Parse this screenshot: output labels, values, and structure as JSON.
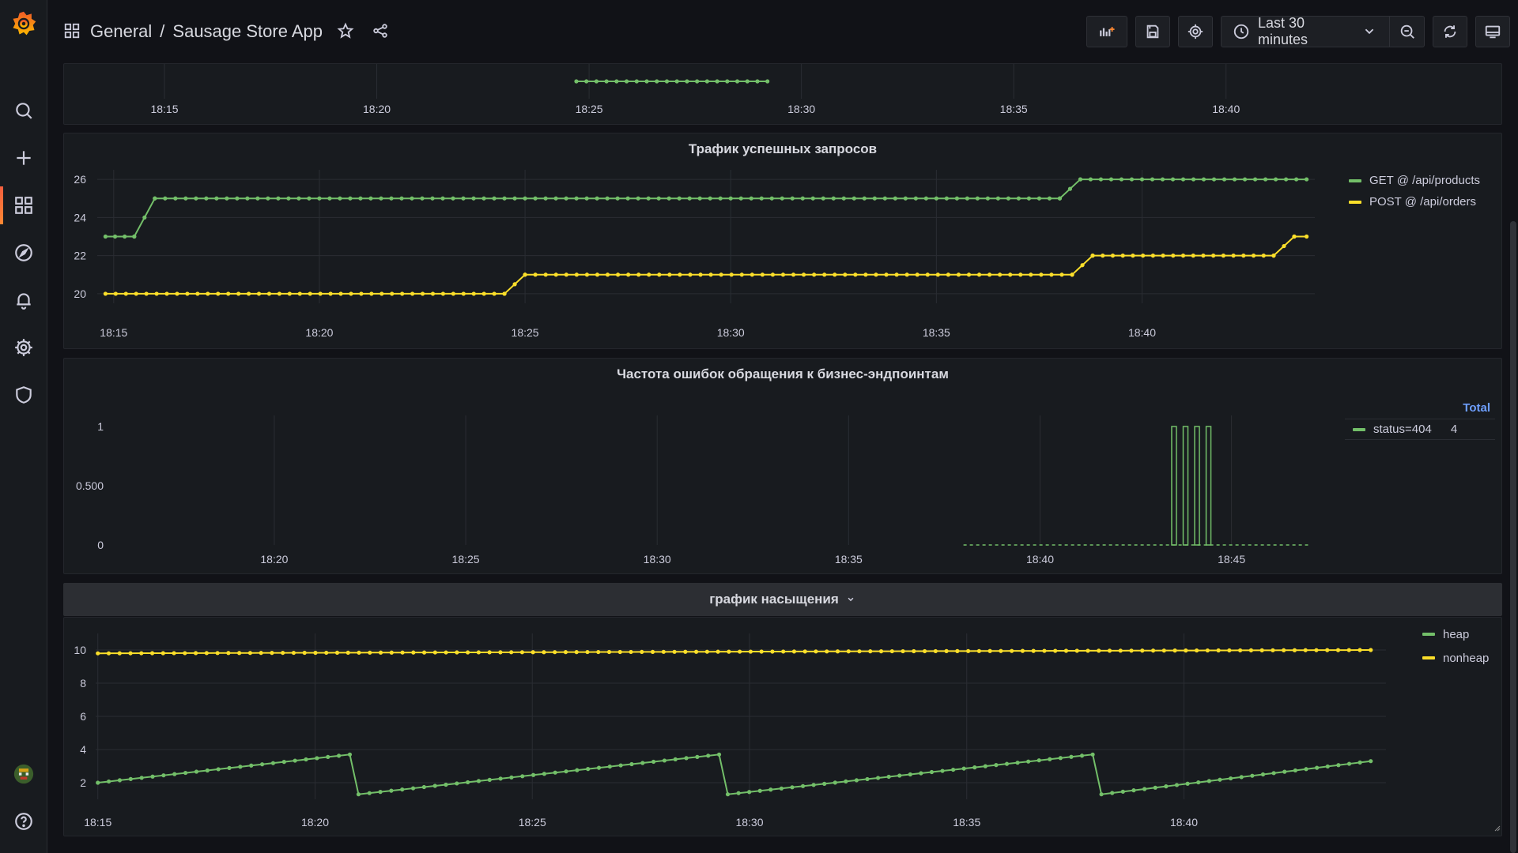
{
  "header": {
    "folder": "General",
    "separator": "/",
    "dashboard_title": "Sausage Store App",
    "time_range": "Last 30 minutes"
  },
  "icons": {
    "logo": "grafana-logo-icon",
    "search": "search-icon",
    "create": "plus-icon",
    "dashboards": "dashboards-grid-icon",
    "explore": "compass-icon",
    "alerting": "bell-icon",
    "configuration": "gear-icon",
    "server_admin": "shield-icon",
    "help": "help-icon"
  },
  "colors": {
    "green": "#73bf69",
    "yellow": "#fade2a",
    "accent": "#f55f3e",
    "link_blue": "#6e9fff"
  },
  "chart_data": [
    {
      "type": "line",
      "title": "",
      "note": "partially visible panel (scrolled), x axis only",
      "xticks": [
        "18:15",
        "18:20",
        "18:25",
        "18:30",
        "18:35",
        "18:40"
      ],
      "series": [
        {
          "name": "",
          "color": "#73bf69",
          "x_range": [
            "18:24.7",
            "18:29.2"
          ],
          "values": [
            1
          ]
        }
      ]
    },
    {
      "type": "line",
      "title": "Трафик успешных запросов",
      "xticks": [
        "18:15",
        "18:20",
        "18:25",
        "18:30",
        "18:35",
        "18:40"
      ],
      "yticks": [
        "20",
        "22",
        "24",
        "26"
      ],
      "ylim": [
        19.5,
        26.5
      ],
      "legend": [
        {
          "label": "GET @ /api/products",
          "color": "#73bf69"
        },
        {
          "label": "POST @ /api/orders",
          "color": "#fade2a"
        }
      ],
      "series": [
        {
          "name": "GET @ /api/products",
          "color": "#73bf69",
          "steps": [
            {
              "from": 18.217,
              "to": 18.25,
              "value": 23
            },
            {
              "from": 18.267,
              "to": 18.383,
              "value": 25
            },
            {
              "from": 18.383,
              "to": 18.742,
              "value": 25
            },
            {
              "from": 18.642,
              "to": 18.742,
              "value": 25
            }
          ]
        },
        {
          "name": "POST @ /api/orders",
          "color": "#fade2a",
          "steps": [
            {
              "from": 18.25,
              "to": 18.4,
              "value": 20
            },
            {
              "from": 18.41,
              "to": 18.625,
              "value": 21
            },
            {
              "from": 18.636,
              "to": 18.7,
              "value": 22
            },
            {
              "from": 18.71,
              "to": 18.742,
              "value": 23
            }
          ]
        }
      ]
    },
    {
      "type": "line",
      "title": "Частота ошибок обращения к бизнес-эндпоинтам",
      "xticks": [
        "18:20",
        "18:25",
        "18:30",
        "18:35",
        "18:40",
        "18:45"
      ],
      "yticks": [
        "0",
        "0.500",
        "1"
      ],
      "ylim": [
        0,
        1
      ],
      "legend_header": "Total",
      "legend": [
        {
          "label": "status=404",
          "total": "4",
          "color": "#73bf69"
        }
      ],
      "series": [
        {
          "name": "status=404",
          "color": "#73bf69",
          "pulses_at": [
            "18:43.5",
            "18:43.8",
            "18:44.1",
            "18:44.4"
          ],
          "pulse_value": 1
        }
      ]
    },
    {
      "type": "line",
      "title": "график насыщения",
      "xticks": [
        "18:15",
        "18:20",
        "18:25",
        "18:30",
        "18:35",
        "18:40"
      ],
      "yticks": [
        "2",
        "4",
        "6",
        "8",
        "10"
      ],
      "ylim": [
        1,
        11
      ],
      "legend": [
        {
          "label": "heap",
          "color": "#73bf69"
        },
        {
          "label": "nonheap",
          "color": "#fade2a"
        }
      ],
      "series": [
        {
          "name": "heap",
          "color": "#73bf69",
          "sawtooth": [
            {
              "start": 2.0,
              "end": 3.7
            },
            {
              "start": 1.3,
              "end": 3.7
            },
            {
              "start": 1.3,
              "end": 3.7
            },
            {
              "start": 1.3,
              "end": 3.3
            }
          ]
        },
        {
          "name": "nonheap",
          "color": "#fade2a",
          "start": 9.8,
          "end": 10.0
        }
      ]
    }
  ]
}
